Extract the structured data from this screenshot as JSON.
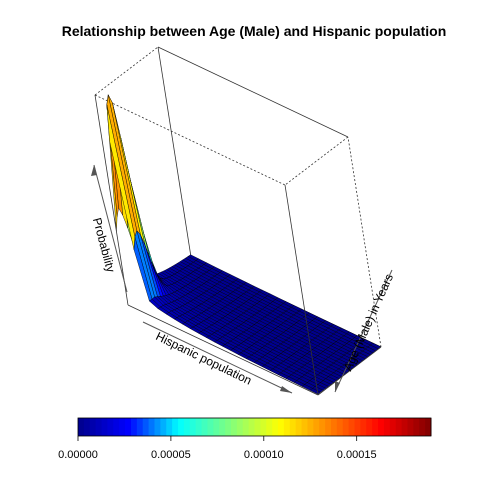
{
  "chart_data": {
    "type": "surface3d",
    "title": "Relationship between Age (Male) and Hispanic population",
    "xlabel": "Hispanic population",
    "ylabel": "Age (Male) in Years",
    "zlabel": "Probability",
    "colorbar": {
      "ticks": [
        0,
        5e-05,
        0.0001,
        0.00015
      ],
      "tick_labels": [
        "0.00000",
        "0.00005",
        "0.00010",
        "0.00015"
      ],
      "range": [
        0,
        0.00019
      ],
      "colors": [
        "#00008b",
        "#0000ff",
        "#00ffff",
        "#7fff7f",
        "#ffff00",
        "#ff7f00",
        "#ff0000",
        "#7f0000"
      ]
    },
    "surface": {
      "grid_size": 25,
      "z_max": 0.000188,
      "peak_x_index": 1,
      "peak_y_index": 2
    }
  }
}
